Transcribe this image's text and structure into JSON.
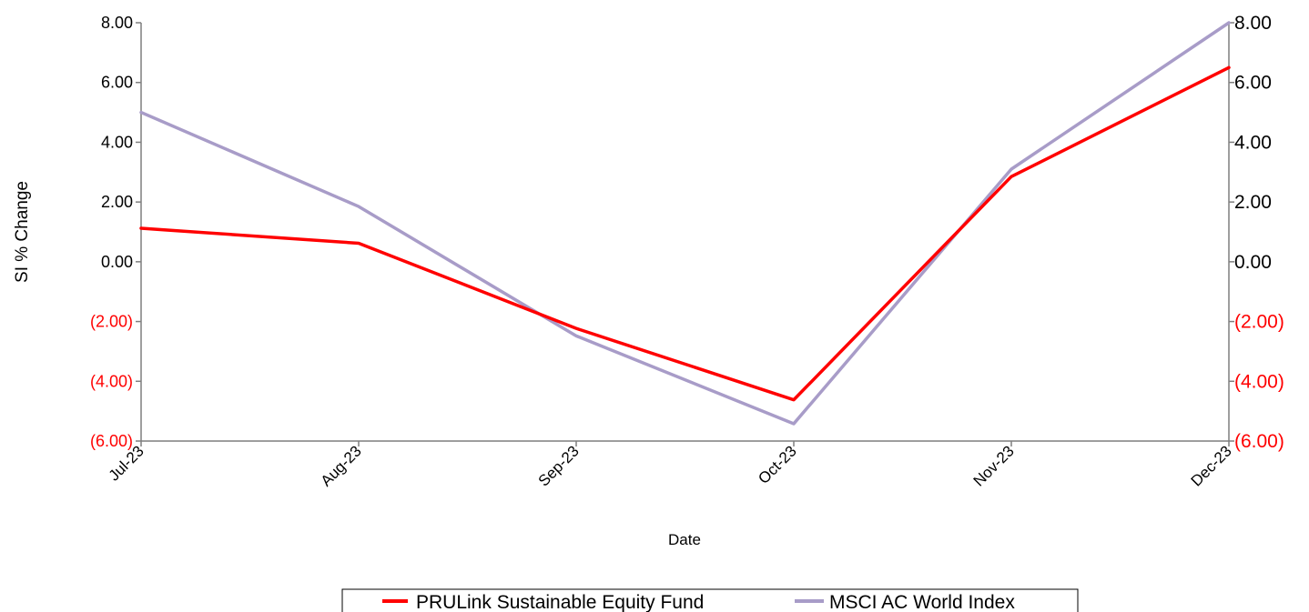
{
  "chart_data": {
    "type": "line",
    "categories": [
      "Jul-23",
      "Aug-23",
      "Sep-23",
      "Oct-23",
      "Nov-23",
      "Dec-23"
    ],
    "series": [
      {
        "name": "PRULink Sustainable Equity Fund",
        "color": "#ff0000",
        "values": [
          1.12,
          0.62,
          -2.23,
          -4.62,
          2.85,
          6.5
        ]
      },
      {
        "name": "MSCI AC World Index",
        "color": "#a89cc8",
        "values": [
          5.0,
          1.85,
          -2.48,
          -5.42,
          3.1,
          8.0
        ]
      }
    ],
    "xlabel": "Date",
    "ylabel": "SI % Change",
    "ylim": [
      -6,
      8
    ],
    "yticks": [
      8,
      6,
      4,
      2,
      0,
      -2,
      -4,
      -6
    ],
    "ytick_labels": [
      "8.00",
      "6.00",
      "4.00",
      "2.00",
      "0.00",
      "(2.00)",
      "(4.00)",
      "(6.00)"
    ],
    "ytick_colors": {
      "positive": "#000000",
      "negative": "#ff0000"
    },
    "secondary_y_axis": true,
    "grid": false,
    "legend_position": "bottom-center"
  }
}
